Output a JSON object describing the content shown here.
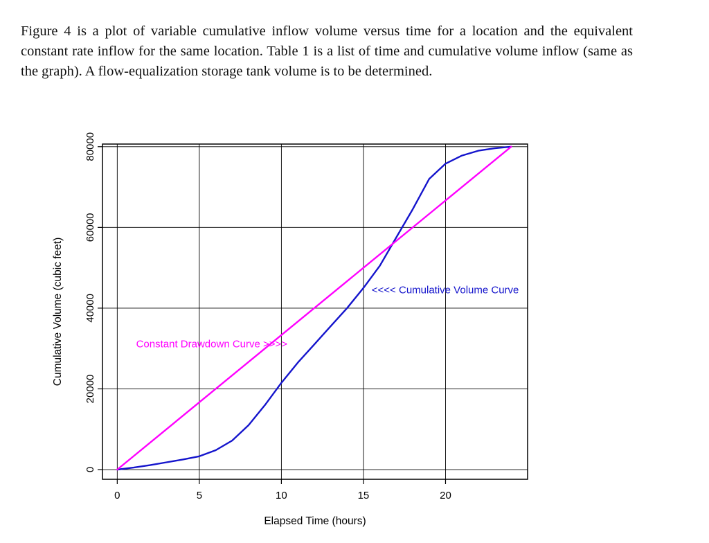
{
  "page": {
    "intro_paragraph": "Figure 4 is a plot of variable cumulative inflow volume versus time for a location and the equivalent constant rate inflow for the same location.  Table 1 is a list of time and cumulative volume inflow (same as the graph).  A flow-equalization storage tank volume is to be determined."
  },
  "chart_data": {
    "type": "line",
    "title": "",
    "xlabel": "Elapsed Time (hours)",
    "ylabel": "Cumulative Volume (cubic feet)",
    "xlim": [
      0,
      24
    ],
    "ylim": [
      0,
      80000
    ],
    "x_ticks": [
      0,
      5,
      10,
      15,
      20
    ],
    "y_ticks": [
      0,
      20000,
      40000,
      60000,
      80000
    ],
    "grid": true,
    "legend_position": "none",
    "series": [
      {
        "name": "Cumulative Volume Curve",
        "color": "#1414cc",
        "x": [
          0,
          1,
          2,
          3,
          4,
          5,
          6,
          7,
          8,
          9,
          10,
          11,
          12,
          13,
          14,
          15,
          16,
          17,
          18,
          19,
          20,
          21,
          22,
          23,
          24
        ],
        "y": [
          0,
          500,
          1100,
          1800,
          2500,
          3300,
          4800,
          7200,
          11000,
          16000,
          21500,
          26500,
          31000,
          35500,
          40000,
          45000,
          50500,
          57500,
          64500,
          72000,
          75800,
          77800,
          79000,
          79600,
          80000
        ]
      },
      {
        "name": "Constant Drawdown Curve",
        "color": "#ff00ff",
        "x": [
          0,
          24
        ],
        "y": [
          0,
          80000
        ]
      }
    ],
    "annotations": [
      {
        "text": "Constant Drawdown Curve >>>>",
        "x": 1.15,
        "y": 30300,
        "color": "#ff00ff",
        "anchor": "start"
      },
      {
        "text": "<<<< Cumulative Volume Curve",
        "x": 15.5,
        "y": 43700,
        "color": "#1414cc",
        "anchor": "start"
      }
    ]
  }
}
